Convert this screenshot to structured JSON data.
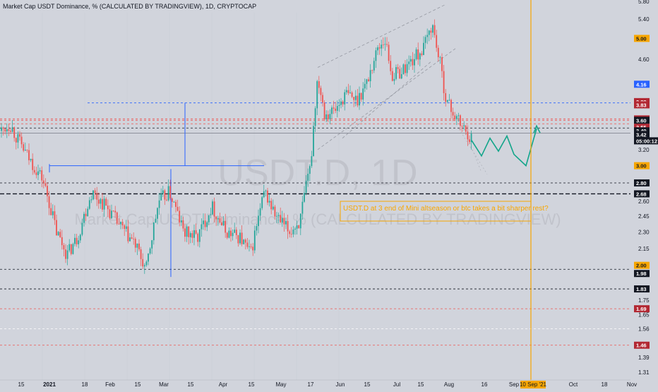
{
  "header": {
    "title": "Market Cap USDT Dominance, % (CALCULATED BY TRADINGVIEW), 1D, CRYPTOCAP"
  },
  "watermark": {
    "symbol": "USDT.D, 1D",
    "name": "Market Cap USDT Dominance, % (CALCULATED BY TRADINGVIEW)"
  },
  "annotation": {
    "text": "USDT.D at 3 end of Mini altseason or btc takes a bit sharper rest?",
    "color": "#f7a600"
  },
  "colors": {
    "background": "#d1d4dc",
    "up": "#26a69a",
    "down": "#ef5350",
    "projection": "#12a58a",
    "vertical_marker": "#f7a600",
    "box_lines": "#2962ff"
  },
  "chart_data": {
    "type": "candlestick",
    "symbol": "USDT.D",
    "timeframe": "1D",
    "y_axis": {
      "ticks": [
        1.31,
        1.39,
        1.46,
        1.56,
        1.65,
        1.69,
        1.75,
        1.83,
        1.98,
        2.0,
        2.15,
        2.3,
        2.45,
        2.6,
        2.68,
        2.8,
        3.0,
        3.2,
        3.42,
        3.49,
        3.55,
        3.59,
        3.6,
        3.62,
        3.83,
        3.86,
        3.88,
        4.16,
        4.6,
        5.0,
        5.4,
        5.8
      ],
      "scale": "log"
    },
    "x_axis": {
      "ticks": [
        "15",
        "2021",
        "18",
        "Feb",
        "15",
        "Mar",
        "15",
        "Apr",
        "15",
        "May",
        "17",
        "Jun",
        "15",
        "Jul",
        "15",
        "Aug",
        "16",
        "Sep",
        "10 Sep '21",
        "Oct",
        "18",
        "Nov"
      ]
    },
    "price_tags": [
      {
        "value": "5.00",
        "style": "orange"
      },
      {
        "value": "4.16",
        "style": "blue"
      },
      {
        "value": "3.88",
        "style": "red"
      },
      {
        "value": "3.83",
        "style": "red"
      },
      {
        "value": "3.62",
        "style": "red"
      },
      {
        "value": "3.60",
        "style": "dark"
      },
      {
        "value": "3.55",
        "style": "red"
      },
      {
        "value": "3.49",
        "style": "dark"
      },
      {
        "value": "3.42",
        "style": "dark"
      },
      {
        "value": "05:00:12",
        "style": "dark"
      },
      {
        "value": "3.00",
        "style": "orange"
      },
      {
        "value": "2.80",
        "style": "dark"
      },
      {
        "value": "2.68",
        "style": "dark"
      },
      {
        "value": "2.00",
        "style": "orange"
      },
      {
        "value": "1.98",
        "style": "dark"
      },
      {
        "value": "1.83",
        "style": "dark"
      },
      {
        "value": "1.69",
        "style": "red"
      },
      {
        "value": "1.46",
        "style": "red"
      }
    ],
    "plain_labels": [
      "5.80",
      "5.40",
      "4.60",
      "3.86",
      "3.59",
      "3.20",
      "2.60",
      "2.45",
      "2.30",
      "2.15",
      "1.75",
      "1.65",
      "1.56",
      "1.39",
      "1.31"
    ],
    "horizontal_levels": [
      {
        "value": 3.86,
        "style": "dashed",
        "color": "#2962ff"
      },
      {
        "value": 3.62,
        "style": "dashed",
        "color": "#ef5350"
      },
      {
        "value": 3.6,
        "style": "dashed",
        "color": "#ef5350"
      },
      {
        "value": 3.55,
        "style": "dashed",
        "color": "#ef5350"
      },
      {
        "value": 3.49,
        "style": "dashed",
        "color": "#131722"
      },
      {
        "value": 3.42,
        "style": "solid",
        "color": "#787b86"
      },
      {
        "value": 2.8,
        "style": "dashed",
        "color": "#131722"
      },
      {
        "value": 2.68,
        "style": "dashed-bold",
        "color": "#131722"
      },
      {
        "value": 1.98,
        "style": "dashed",
        "color": "#131722"
      },
      {
        "value": 1.83,
        "style": "dashed",
        "color": "#131722"
      },
      {
        "value": 1.69,
        "style": "dashed",
        "color": "#ef5350"
      },
      {
        "value": 1.56,
        "style": "dashed",
        "color": "#ffffff"
      },
      {
        "value": 1.46,
        "style": "dashed",
        "color": "#ef5350"
      }
    ],
    "projection_path": [
      3.32,
      3.12,
      3.35,
      3.18,
      3.38,
      3.14,
      3.0,
      3.48
    ],
    "candles_summary": {
      "start_value": 3.45,
      "low_region": 1.95,
      "peak": 5.45,
      "last": 3.42
    }
  }
}
